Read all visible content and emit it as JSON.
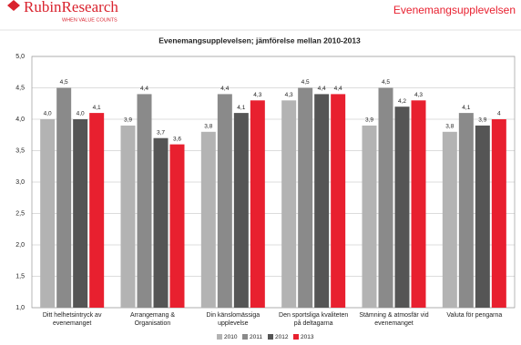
{
  "header": {
    "logo": "RubinResearch",
    "tagline": "WHEN VALUE COUNTS",
    "section": "Evenemangsupplevelsen"
  },
  "chart_data": {
    "type": "bar",
    "title": "Evenemangsupplevelsen; jämförelse mellan 2010-2013",
    "categories": [
      "Ditt helhetsintryck av evenemanget",
      "Arrangemang & Organisation",
      "Din känslomässiga upplevelse",
      "Den sportsliga kvaliteten på deltagarna",
      "Stämning & atmosfär vid evenemanget",
      "Valuta för pengarna"
    ],
    "series": [
      {
        "name": "2010",
        "color": "#b3b3b3",
        "values": [
          4.0,
          3.9,
          3.8,
          4.3,
          3.9,
          3.8
        ],
        "value_labels": [
          "4,0",
          "3,9",
          "3,8",
          "4,3",
          "3,9",
          "3,8"
        ]
      },
      {
        "name": "2011",
        "color": "#8a8a8a",
        "values": [
          4.5,
          4.4,
          4.4,
          4.5,
          4.5,
          4.1
        ],
        "value_labels": [
          "4,5",
          "4,4",
          "4,4",
          "4,5",
          "4,5",
          "4,1"
        ]
      },
      {
        "name": "2012",
        "color": "#555555",
        "values": [
          4.0,
          3.7,
          4.1,
          4.4,
          4.2,
          3.9
        ],
        "value_labels": [
          "4,0",
          "3,7",
          "4,1",
          "4,4",
          "4,2",
          "3,9"
        ]
      },
      {
        "name": "2013",
        "color": "#e8202f",
        "values": [
          4.1,
          3.6,
          4.3,
          4.4,
          4.3,
          4.0
        ],
        "value_labels": [
          "4,1",
          "3,6",
          "4,3",
          "4,4",
          "4,3",
          "4"
        ]
      }
    ],
    "ylim": [
      1,
      5
    ],
    "yticks": [
      {
        "value": 1,
        "label": "1,0"
      },
      {
        "value": 1.5,
        "label": "1,5"
      },
      {
        "value": 2,
        "label": "2,0"
      },
      {
        "value": 2.5,
        "label": "2,5"
      },
      {
        "value": 3,
        "label": "3,0"
      },
      {
        "value": 3.5,
        "label": "3,5"
      },
      {
        "value": 4,
        "label": "4,0"
      },
      {
        "value": 4.5,
        "label": "4,5"
      },
      {
        "value": 5,
        "label": "5,0"
      }
    ],
    "grid": true
  }
}
